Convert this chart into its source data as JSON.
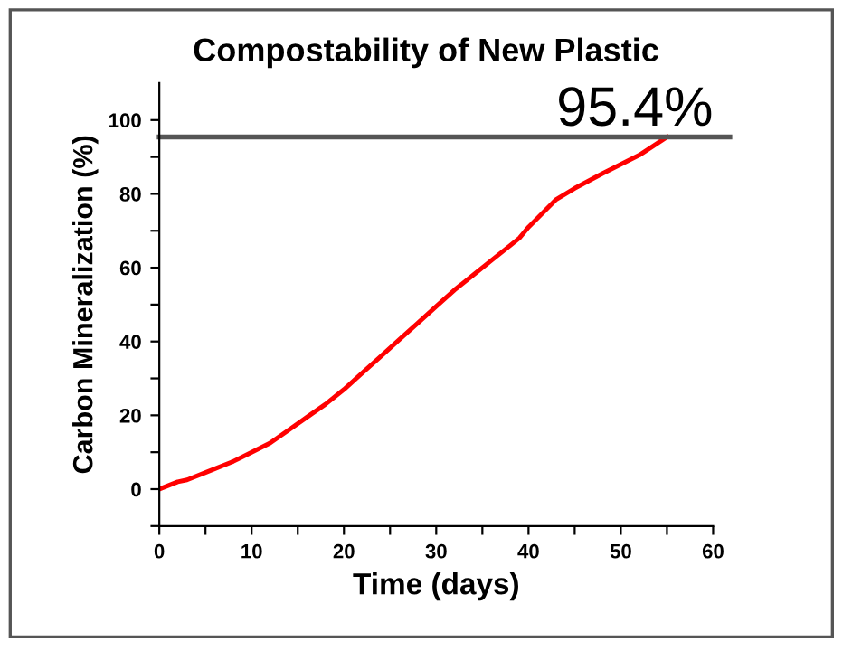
{
  "chart_data": {
    "type": "line",
    "title": "Compostability of New Plastic",
    "xlabel": "Time (days)",
    "ylabel": "Carbon Mineralization (%)",
    "x": [
      0,
      2,
      3,
      5,
      8,
      10,
      12,
      14,
      16,
      18,
      20,
      22,
      24,
      26,
      28,
      30,
      32,
      34,
      36,
      38,
      39,
      40,
      42,
      43,
      45,
      48,
      50,
      52,
      55
    ],
    "series": [
      {
        "color": "#ff0000",
        "values": [
          0,
          2,
          2.5,
          4.5,
          7.5,
          10,
          12.5,
          16,
          19.5,
          23,
          27,
          31.5,
          36,
          40.5,
          45,
          49.5,
          54,
          58,
          62,
          66,
          68,
          71,
          76,
          78.5,
          81.5,
          85.5,
          88,
          90.5,
          95.4
        ]
      }
    ],
    "xlim": [
      0,
      60
    ],
    "ylim": [
      -10,
      110
    ],
    "xticks": [
      0,
      {
        "value": 5,
        "label": null
      },
      10,
      {
        "value": 15,
        "label": null
      },
      20,
      {
        "value": 25,
        "label": null
      },
      30,
      {
        "value": 35,
        "label": null
      },
      40,
      {
        "value": 45,
        "label": null
      },
      50,
      {
        "value": 55,
        "label": null
      },
      60
    ],
    "yticks": [
      {
        "value": -10,
        "label": null
      },
      0,
      {
        "value": 10,
        "label": null
      },
      20,
      {
        "value": 30,
        "label": null
      },
      40,
      {
        "value": 50,
        "label": null
      },
      60,
      {
        "value": 70,
        "label": null
      },
      80,
      {
        "value": 90,
        "label": null
      },
      100
    ],
    "ref_lines": [
      {
        "axis": "y",
        "value": 95.4,
        "label": "95.4%",
        "color": "#555555"
      }
    ],
    "grid": false,
    "legend": false,
    "marker": "none",
    "line_style": "solid"
  }
}
